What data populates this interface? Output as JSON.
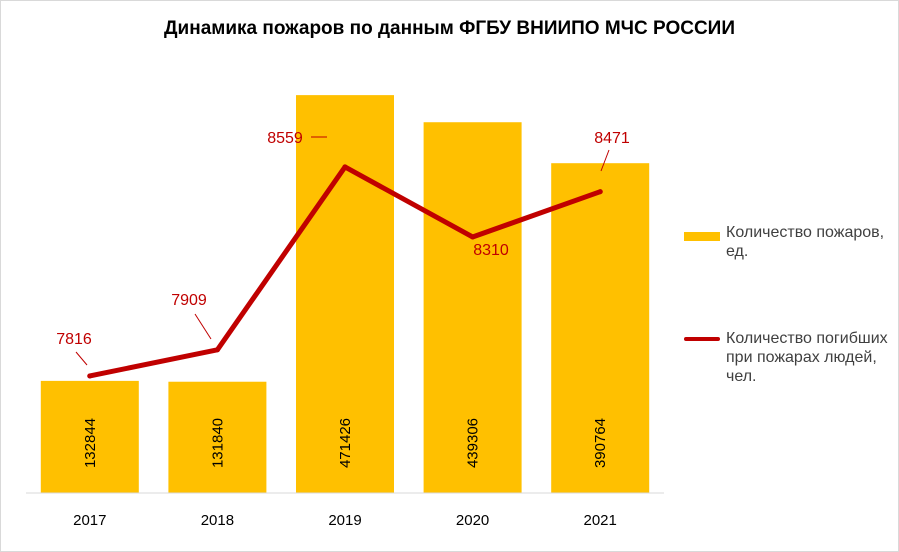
{
  "chart_data": {
    "type": "bar",
    "title": "Динамика пожаров по данным ФГБУ ВНИИПО МЧС РОССИИ",
    "categories": [
      "2017",
      "2018",
      "2019",
      "2020",
      "2021"
    ],
    "series": [
      {
        "name": "Количество пожаров, ед.",
        "type": "bar",
        "values": [
          132844,
          131840,
          471426,
          439306,
          390764
        ],
        "labels": [
          "132844",
          "131840",
          "471426",
          "439306",
          "390764"
        ],
        "color": "#ffc000",
        "axis": "primary"
      },
      {
        "name": "Количество погибших при пожарах людей, чел.",
        "type": "line",
        "values": [
          7816,
          7909,
          8559,
          8310,
          8471
        ],
        "labels": [
          "7816",
          "7909",
          "8559",
          "8310",
          "8471"
        ],
        "color": "#c00000",
        "axis": "secondary"
      }
    ],
    "ylim": [
      0,
      500000
    ],
    "y2lim": [
      7400,
      8900
    ],
    "grid": false,
    "legend": "right"
  }
}
